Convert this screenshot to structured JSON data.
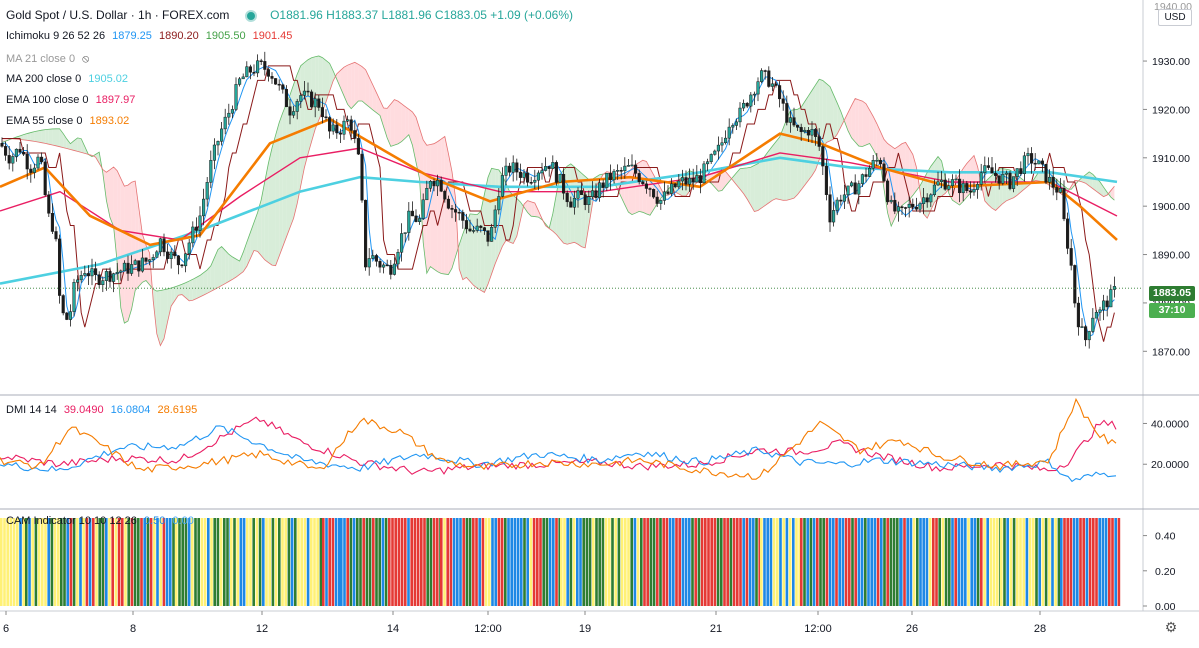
{
  "header": {
    "title": "Gold Spot / U.S. Dollar · 1h · FOREX.com",
    "ohlc": "O1881.96  H1883.37  L1881.96  C1883.05  +1.09 (+0.06%)"
  },
  "legends": {
    "ichimoku": {
      "label": "Ichimoku 9 26 52 26",
      "v1": "1879.25",
      "v2": "1890.20",
      "v3": "1905.50",
      "v4": "1901.45"
    },
    "ma21": {
      "label": "MA 21 close 0"
    },
    "ma200": {
      "label": "MA 200 close 0",
      "value": "1905.02"
    },
    "ema100": {
      "label": "EMA 100 close 0",
      "value": "1897.97"
    },
    "ema55": {
      "label": "EMA 55 close 0",
      "value": "1893.02"
    },
    "dmi": {
      "label": "DMI 14 14",
      "v1": "39.0490",
      "v2": "16.0804",
      "v3": "28.6195"
    },
    "cam": {
      "label": "CAM Indicator 10 10 12 26",
      "v1": "0.50",
      "v2": "0.00"
    }
  },
  "scale": {
    "currency": "USD",
    "last_price": "1883.05",
    "countdown": "37:10",
    "partial_top_label": "1940.00",
    "price_ticks": [
      "1930.00",
      "1920.00",
      "1910.00",
      "1900.00",
      "1890.00",
      "1880.00",
      "1870.00"
    ],
    "dmi_ticks": [
      "40.0000",
      "20.0000"
    ],
    "cam_ticks": [
      "0.40",
      "0.20",
      "0.00"
    ],
    "time_labels": [
      "6",
      "8",
      "12",
      "14",
      "12:00",
      "19",
      "21",
      "12:00",
      "26",
      "28"
    ]
  },
  "chart_data": [
    {
      "type": "candlestick",
      "title": "Gold Spot / U.S. Dollar · 1h · FOREX.com",
      "ylim": [
        1862,
        1942
      ],
      "grid": false,
      "last": {
        "open": 1881.96,
        "high": 1883.37,
        "low": 1881.96,
        "close": 1883.05
      },
      "close_path": [
        [
          0,
          1913
        ],
        [
          10,
          1910
        ],
        [
          20,
          1912
        ],
        [
          30,
          1908
        ],
        [
          40,
          1910
        ],
        [
          48,
          1898
        ],
        [
          55,
          1895
        ],
        [
          60,
          1880
        ],
        [
          65,
          1876
        ],
        [
          70,
          1878
        ],
        [
          75,
          1884
        ],
        [
          85,
          1887
        ],
        [
          95,
          1885
        ],
        [
          110,
          1886
        ],
        [
          125,
          1887
        ],
        [
          140,
          1888
        ],
        [
          150,
          1889
        ],
        [
          160,
          1893
        ],
        [
          170,
          1890
        ],
        [
          180,
          1888
        ],
        [
          190,
          1893
        ],
        [
          200,
          1898
        ],
        [
          210,
          1908
        ],
        [
          220,
          1915
        ],
        [
          230,
          1920
        ],
        [
          240,
          1926
        ],
        [
          250,
          1928
        ],
        [
          260,
          1929
        ],
        [
          270,
          1928
        ],
        [
          280,
          1924
        ],
        [
          290,
          1920
        ],
        [
          300,
          1923
        ],
        [
          310,
          1922
        ],
        [
          320,
          1921
        ],
        [
          330,
          1915
        ],
        [
          340,
          1916
        ],
        [
          350,
          1918
        ],
        [
          360,
          1908
        ],
        [
          365,
          1888
        ],
        [
          370,
          1890
        ],
        [
          380,
          1888
        ],
        [
          390,
          1887
        ],
        [
          400,
          1893
        ],
        [
          410,
          1898
        ],
        [
          420,
          1897
        ],
        [
          430,
          1906
        ],
        [
          440,
          1905
        ],
        [
          450,
          1900
        ],
        [
          460,
          1898
        ],
        [
          470,
          1895
        ],
        [
          480,
          1895
        ],
        [
          490,
          1893
        ],
        [
          500,
          1905
        ],
        [
          510,
          1908
        ],
        [
          520,
          1907
        ],
        [
          530,
          1906
        ],
        [
          540,
          1908
        ],
        [
          550,
          1909
        ],
        [
          560,
          1905
        ],
        [
          570,
          1901
        ],
        [
          580,
          1902
        ],
        [
          590,
          1901
        ],
        [
          600,
          1904
        ],
        [
          610,
          1906
        ],
        [
          620,
          1907
        ],
        [
          630,
          1908
        ],
        [
          640,
          1906
        ],
        [
          650,
          1904
        ],
        [
          660,
          1901
        ],
        [
          670,
          1903
        ],
        [
          680,
          1905
        ],
        [
          690,
          1905
        ],
        [
          700,
          1906
        ],
        [
          710,
          1909
        ],
        [
          720,
          1912
        ],
        [
          730,
          1918
        ],
        [
          740,
          1919
        ],
        [
          750,
          1923
        ],
        [
          760,
          1927
        ],
        [
          770,
          1926
        ],
        [
          780,
          1922
        ],
        [
          790,
          1917
        ],
        [
          800,
          1915
        ],
        [
          810,
          1916
        ],
        [
          820,
          1912
        ],
        [
          830,
          1898
        ],
        [
          840,
          1902
        ],
        [
          850,
          1903
        ],
        [
          860,
          1905
        ],
        [
          870,
          1908
        ],
        [
          880,
          1910
        ],
        [
          890,
          1900
        ],
        [
          900,
          1898
        ],
        [
          910,
          1900
        ],
        [
          920,
          1901
        ],
        [
          930,
          1903
        ],
        [
          940,
          1905
        ],
        [
          950,
          1905
        ],
        [
          960,
          1904
        ],
        [
          970,
          1903
        ],
        [
          980,
          1907
        ],
        [
          990,
          1907
        ],
        [
          1000,
          1906
        ],
        [
          1010,
          1905
        ],
        [
          1020,
          1908
        ],
        [
          1030,
          1910
        ],
        [
          1040,
          1908
        ],
        [
          1050,
          1905
        ],
        [
          1060,
          1903
        ],
        [
          1065,
          1895
        ],
        [
          1070,
          1890
        ],
        [
          1075,
          1880
        ],
        [
          1080,
          1875
        ],
        [
          1085,
          1872
        ],
        [
          1090,
          1876
        ],
        [
          1095,
          1879
        ],
        [
          1100,
          1878
        ],
        [
          1105,
          1880
        ],
        [
          1110,
          1881
        ],
        [
          1117,
          1883.05
        ]
      ]
    },
    {
      "type": "line",
      "name": "MA 200 close 0",
      "color": "#4dd0e1",
      "points": [
        [
          0,
          1884
        ],
        [
          100,
          1888
        ],
        [
          200,
          1895
        ],
        [
          300,
          1903
        ],
        [
          360,
          1906
        ],
        [
          420,
          1905
        ],
        [
          500,
          1904
        ],
        [
          600,
          1904
        ],
        [
          700,
          1907
        ],
        [
          780,
          1910
        ],
        [
          850,
          1908
        ],
        [
          950,
          1907
        ],
        [
          1050,
          1907
        ],
        [
          1117,
          1905.02
        ]
      ]
    },
    {
      "type": "line",
      "name": "EMA 100 close 0",
      "color": "#e91e63",
      "points": [
        [
          0,
          1899
        ],
        [
          60,
          1903
        ],
        [
          120,
          1895
        ],
        [
          180,
          1893
        ],
        [
          240,
          1902
        ],
        [
          300,
          1910
        ],
        [
          360,
          1912
        ],
        [
          420,
          1907
        ],
        [
          500,
          1903
        ],
        [
          600,
          1903
        ],
        [
          700,
          1906
        ],
        [
          780,
          1911
        ],
        [
          850,
          1909
        ],
        [
          950,
          1905
        ],
        [
          1050,
          1905
        ],
        [
          1117,
          1897.97
        ]
      ]
    },
    {
      "type": "line",
      "name": "EMA 55 close 0",
      "color": "#f57c00",
      "points": [
        [
          0,
          1904
        ],
        [
          45,
          1908
        ],
        [
          90,
          1898
        ],
        [
          150,
          1892
        ],
        [
          200,
          1894
        ],
        [
          270,
          1913
        ],
        [
          330,
          1918
        ],
        [
          380,
          1912
        ],
        [
          430,
          1906
        ],
        [
          490,
          1901
        ],
        [
          560,
          1905
        ],
        [
          630,
          1906
        ],
        [
          700,
          1904
        ],
        [
          780,
          1915
        ],
        [
          820,
          1913
        ],
        [
          880,
          1908
        ],
        [
          950,
          1904
        ],
        [
          1050,
          1905
        ],
        [
          1080,
          1900
        ],
        [
          1117,
          1893.02
        ]
      ]
    },
    {
      "type": "line",
      "name": "DMI 14 14",
      "ylim": [
        0,
        52
      ],
      "series": [
        {
          "color": "#e91e63",
          "points": [
            [
              0,
              24
            ],
            [
              60,
              20
            ],
            [
              120,
              23
            ],
            [
              180,
              22
            ],
            [
              240,
              38
            ],
            [
              260,
              42
            ],
            [
              300,
              31
            ],
            [
              360,
              21
            ],
            [
              420,
              16
            ],
            [
              480,
              19
            ],
            [
              540,
              20
            ],
            [
              600,
              21
            ],
            [
              640,
              19
            ],
            [
              700,
              20
            ],
            [
              760,
              27
            ],
            [
              800,
              26
            ],
            [
              840,
              30
            ],
            [
              880,
              24
            ],
            [
              940,
              18
            ],
            [
              1000,
              20
            ],
            [
              1050,
              17
            ],
            [
              1070,
              22
            ],
            [
              1100,
              40
            ],
            [
              1117,
              39.05
            ]
          ]
        },
        {
          "color": "#2196f3",
          "points": [
            [
              0,
              20
            ],
            [
              60,
              17
            ],
            [
              120,
              28
            ],
            [
              180,
              29
            ],
            [
              220,
              38
            ],
            [
              260,
              30
            ],
            [
              300,
              22
            ],
            [
              360,
              18
            ],
            [
              420,
              25
            ],
            [
              480,
              20
            ],
            [
              540,
              25
            ],
            [
              600,
              22
            ],
            [
              640,
              26
            ],
            [
              700,
              21
            ],
            [
              760,
              27
            ],
            [
              800,
              21
            ],
            [
              840,
              20
            ],
            [
              880,
              22
            ],
            [
              940,
              20
            ],
            [
              1000,
              18
            ],
            [
              1050,
              21
            ],
            [
              1070,
              12
            ],
            [
              1100,
              15
            ],
            [
              1117,
              16.08
            ]
          ]
        },
        {
          "color": "#f57c00",
          "points": [
            [
              0,
              22
            ],
            [
              40,
              19
            ],
            [
              70,
              38
            ],
            [
              100,
              30
            ],
            [
              140,
              17
            ],
            [
              200,
              20
            ],
            [
              260,
              25
            ],
            [
              320,
              17
            ],
            [
              360,
              42
            ],
            [
              400,
              36
            ],
            [
              440,
              22
            ],
            [
              480,
              18
            ],
            [
              540,
              21
            ],
            [
              600,
              20
            ],
            [
              640,
              22
            ],
            [
              700,
              17
            ],
            [
              760,
              14
            ],
            [
              820,
              40
            ],
            [
              860,
              27
            ],
            [
              900,
              32
            ],
            [
              940,
              24
            ],
            [
              1000,
              19
            ],
            [
              1050,
              22
            ],
            [
              1075,
              51
            ],
            [
              1100,
              34
            ],
            [
              1117,
              28.62
            ]
          ]
        }
      ]
    },
    {
      "type": "bar",
      "name": "CAM Indicator 10 10 12 26",
      "ylim": [
        0,
        0.5
      ],
      "value": 0.5,
      "color_segments": [
        {
          "from": 0,
          "to": 25,
          "palette": [
            "#fff176",
            "#fff176",
            "#fff176",
            "#1e88e5"
          ]
        },
        {
          "from": 25,
          "to": 60,
          "palette": [
            "#fff176",
            "#2e7d32",
            "#fff176",
            "#1e88e5",
            "#fff176"
          ]
        },
        {
          "from": 60,
          "to": 105,
          "palette": [
            "#1e88e5",
            "#e53935",
            "#2e7d32",
            "#fff176"
          ]
        },
        {
          "from": 105,
          "to": 175,
          "palette": [
            "#2e7d32",
            "#fff176",
            "#1e88e5",
            "#e53935",
            "#fff176"
          ]
        },
        {
          "from": 175,
          "to": 230,
          "palette": [
            "#2e7d32",
            "#1e88e5",
            "#2e7d32",
            "#fff176"
          ]
        },
        {
          "from": 230,
          "to": 322,
          "palette": [
            "#fff176",
            "#fff176",
            "#2e7d32",
            "#fff176",
            "#1e88e5"
          ]
        },
        {
          "from": 322,
          "to": 340,
          "palette": [
            "#1e88e5",
            "#e53935"
          ]
        },
        {
          "from": 340,
          "to": 440,
          "palette": [
            "#e53935",
            "#1e88e5",
            "#e53935",
            "#2e7d32"
          ]
        },
        {
          "from": 440,
          "to": 560,
          "palette": [
            "#1e88e5",
            "#fff176",
            "#2e7d32",
            "#1e88e5",
            "#e53935"
          ]
        },
        {
          "from": 560,
          "to": 640,
          "palette": [
            "#fff176",
            "#1e88e5",
            "#2e7d32",
            "#fff176"
          ]
        },
        {
          "from": 640,
          "to": 760,
          "palette": [
            "#e53935",
            "#1e88e5",
            "#2e7d32",
            "#e53935"
          ]
        },
        {
          "from": 760,
          "to": 800,
          "palette": [
            "#fff176",
            "#fff176",
            "#1e88e5"
          ]
        },
        {
          "from": 800,
          "to": 900,
          "palette": [
            "#1e88e5",
            "#2e7d32",
            "#e53935",
            "#1e88e5"
          ]
        },
        {
          "from": 900,
          "to": 1000,
          "palette": [
            "#e53935",
            "#fff176",
            "#1e88e5",
            "#2e7d32"
          ]
        },
        {
          "from": 1000,
          "to": 1060,
          "palette": [
            "#fff176",
            "#2e7d32",
            "#fff176",
            "#1e88e5"
          ]
        },
        {
          "from": 1060,
          "to": 1120,
          "palette": [
            "#e53935",
            "#e53935",
            "#1e88e5",
            "#e53935"
          ]
        }
      ]
    }
  ],
  "colors": {
    "up": "#26a69a",
    "down": "#ef5350",
    "candle_fill_up": "#ffffff",
    "candle_dark": "#1b1b1b",
    "cloud_green": "#c8e6c9",
    "cloud_red": "#ffcdd2",
    "tenkan": "#2196f3",
    "kijun": "#8b1a1a",
    "last_tag": "#2e7d32",
    "countdown_tag": "#4caf50"
  }
}
